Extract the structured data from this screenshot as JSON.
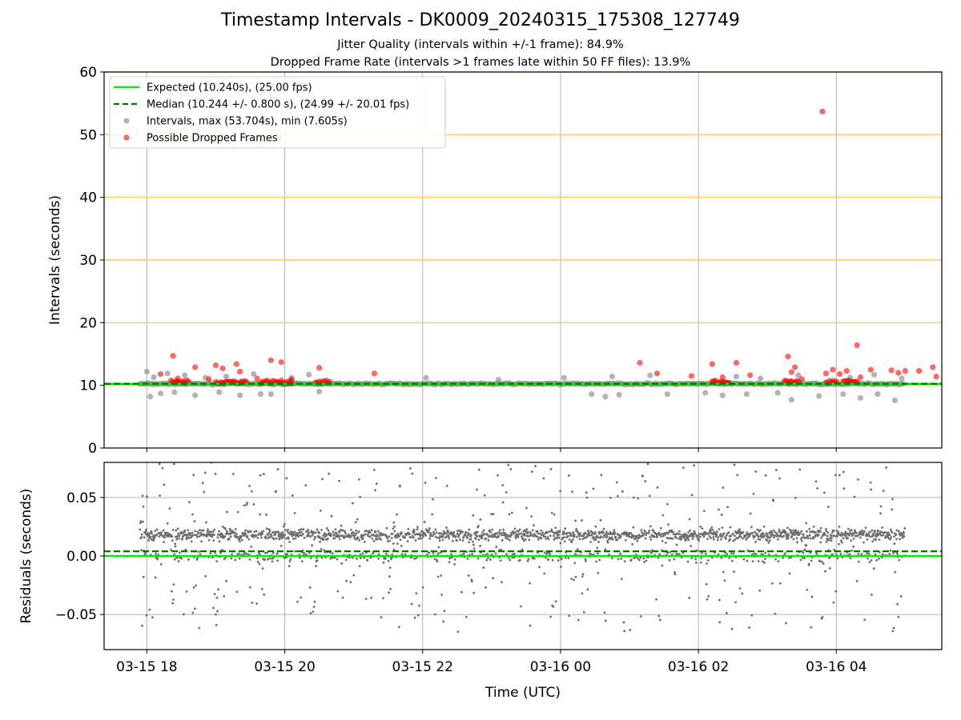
{
  "chart_data": [
    {
      "type": "scatter",
      "title": "Timestamp Intervals - DK0009_20240315_175308_127749",
      "subtitle_lines": [
        "Jitter Quality (intervals within +/-1 frame): 84.9%",
        "Dropped Frame Rate (intervals >1 frames late within 50 FF files): 13.9%"
      ],
      "xlabel": "",
      "ylabel": "Intervals (seconds)",
      "x_axis_unit": "hours since 2024-03-15 00:00 UTC",
      "xlim": [
        17.38,
        29.53
      ],
      "ylim": [
        0,
        60
      ],
      "yticks": [
        0,
        10,
        20,
        30,
        40,
        50,
        60
      ],
      "grid": true,
      "horizontal_bands": [
        10,
        20,
        30,
        40,
        50,
        60
      ],
      "legend_position": "top-left",
      "series": [
        {
          "name": "Expected (10.240s), (25.00 fps)",
          "kind": "hline",
          "y": 10.24,
          "color": "#00ee00"
        },
        {
          "name": "Median (10.244 +/- 0.800 s), (24.99 +/- 20.01 fps)",
          "kind": "hline",
          "y": 10.244,
          "color": "#007700",
          "dashed": true
        },
        {
          "name": "Intervals, max (53.704s), min (7.605s)",
          "kind": "scatter",
          "color": "#808080",
          "max": 53.704,
          "min": 7.605,
          "x_range": [
            17.9,
            29.0
          ],
          "outliers": [
            [
              18.0,
              12.2
            ],
            [
              18.05,
              8.2
            ],
            [
              18.1,
              11.3
            ],
            [
              18.2,
              8.7
            ],
            [
              18.3,
              11.9
            ],
            [
              18.4,
              8.9
            ],
            [
              18.55,
              11.6
            ],
            [
              18.7,
              8.4
            ],
            [
              18.85,
              11.2
            ],
            [
              19.05,
              8.9
            ],
            [
              19.15,
              11.4
            ],
            [
              19.35,
              8.4
            ],
            [
              19.55,
              11.8
            ],
            [
              19.65,
              8.6
            ],
            [
              19.8,
              8.6
            ],
            [
              20.1,
              11.2
            ],
            [
              20.35,
              11.7
            ],
            [
              20.5,
              9.0
            ],
            [
              22.05,
              11.2
            ],
            [
              23.1,
              10.9
            ],
            [
              24.05,
              11.2
            ],
            [
              24.45,
              8.6
            ],
            [
              24.65,
              8.2
            ],
            [
              24.75,
              11.4
            ],
            [
              24.85,
              8.5
            ],
            [
              25.3,
              11.6
            ],
            [
              25.55,
              8.6
            ],
            [
              26.1,
              8.8
            ],
            [
              26.35,
              8.4
            ],
            [
              26.55,
              11.4
            ],
            [
              26.7,
              8.6
            ],
            [
              26.9,
              11.1
            ],
            [
              27.15,
              8.8
            ],
            [
              27.35,
              7.7
            ],
            [
              27.45,
              11.6
            ],
            [
              27.75,
              8.3
            ],
            [
              28.1,
              8.6
            ],
            [
              28.2,
              11.2
            ],
            [
              28.35,
              8.0
            ],
            [
              28.55,
              11.7
            ],
            [
              28.6,
              8.6
            ],
            [
              28.85,
              7.6
            ],
            [
              28.95,
              11.1
            ]
          ]
        },
        {
          "name": "Possible Dropped Frames",
          "kind": "scatter",
          "color": "#ff0000",
          "clusters": [
            [
              18.35,
              18.6
            ],
            [
              19.0,
              19.45
            ],
            [
              19.65,
              20.1
            ],
            [
              20.45,
              20.65
            ],
            [
              26.2,
              26.45
            ],
            [
              27.25,
              27.45
            ],
            [
              27.85,
              28.0
            ],
            [
              28.1,
              28.3
            ]
          ],
          "points": [
            [
              18.2,
              11.8
            ],
            [
              18.38,
              14.7
            ],
            [
              18.45,
              11.1
            ],
            [
              18.7,
              12.9
            ],
            [
              18.9,
              11.0
            ],
            [
              19.0,
              13.2
            ],
            [
              19.1,
              12.7
            ],
            [
              19.3,
              13.4
            ],
            [
              19.35,
              12.2
            ],
            [
              19.6,
              11.1
            ],
            [
              19.8,
              14.0
            ],
            [
              19.95,
              13.7
            ],
            [
              20.1,
              10.9
            ],
            [
              20.5,
              12.8
            ],
            [
              21.3,
              11.9
            ],
            [
              25.15,
              13.6
            ],
            [
              25.4,
              11.9
            ],
            [
              25.9,
              11.5
            ],
            [
              26.2,
              13.4
            ],
            [
              26.35,
              11.3
            ],
            [
              26.55,
              13.6
            ],
            [
              26.75,
              11.6
            ],
            [
              27.3,
              14.6
            ],
            [
              27.35,
              12.1
            ],
            [
              27.4,
              12.9
            ],
            [
              27.5,
              11.0
            ],
            [
              27.8,
              53.7
            ],
            [
              27.85,
              11.9
            ],
            [
              27.95,
              12.5
            ],
            [
              28.05,
              11.8
            ],
            [
              28.15,
              12.3
            ],
            [
              28.3,
              16.4
            ],
            [
              28.35,
              11.3
            ],
            [
              28.5,
              12.5
            ],
            [
              28.8,
              12.4
            ],
            [
              28.9,
              12.0
            ],
            [
              29.0,
              12.3
            ],
            [
              29.2,
              12.3
            ],
            [
              29.4,
              12.9
            ],
            [
              29.45,
              11.4
            ]
          ]
        }
      ]
    },
    {
      "type": "scatter",
      "title": "",
      "xlabel": "Time (UTC)",
      "ylabel": "Residuals (seconds)",
      "xlim": [
        17.38,
        29.53
      ],
      "ylim": [
        -0.08,
        0.08
      ],
      "yticks": [
        -0.05,
        0.0,
        0.05
      ],
      "ytick_labels": [
        "−0.05",
        "0.00",
        "0.05"
      ],
      "xticks": [
        18,
        20,
        22,
        24,
        26,
        28
      ],
      "xtick_labels": [
        "03-15 18",
        "03-15 20",
        "03-15 22",
        "03-16 00",
        "03-16 02",
        "03-16 04"
      ],
      "grid": true,
      "series": [
        {
          "name": "Expected",
          "kind": "hline",
          "y": 0.0,
          "color": "#00ee00"
        },
        {
          "name": "Median",
          "kind": "hline",
          "y": 0.004,
          "color": "#007700",
          "dashed": true
        },
        {
          "name": "Residuals",
          "kind": "scatter",
          "color": "#6e6e6e",
          "x_range": [
            17.9,
            29.0
          ],
          "value_range": [
            -0.08,
            0.08
          ],
          "note_band": [
            -0.02,
            0.02
          ]
        }
      ]
    }
  ]
}
